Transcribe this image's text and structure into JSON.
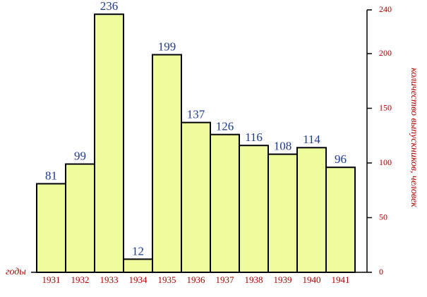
{
  "chart_data": {
    "type": "bar",
    "x_axis_label": "годы",
    "y_axis_label": "количество выпускников, человек",
    "categories": [
      "1931",
      "1932",
      "1933",
      "1934",
      "1935",
      "1936",
      "1937",
      "1938",
      "1939",
      "1940",
      "1941"
    ],
    "values": [
      81,
      99,
      236,
      12,
      199,
      137,
      126,
      116,
      108,
      114,
      96
    ],
    "color": "#eefc9c",
    "ylim": [
      0,
      240
    ],
    "yticks": [
      0,
      50,
      100,
      150,
      200,
      240
    ]
  }
}
